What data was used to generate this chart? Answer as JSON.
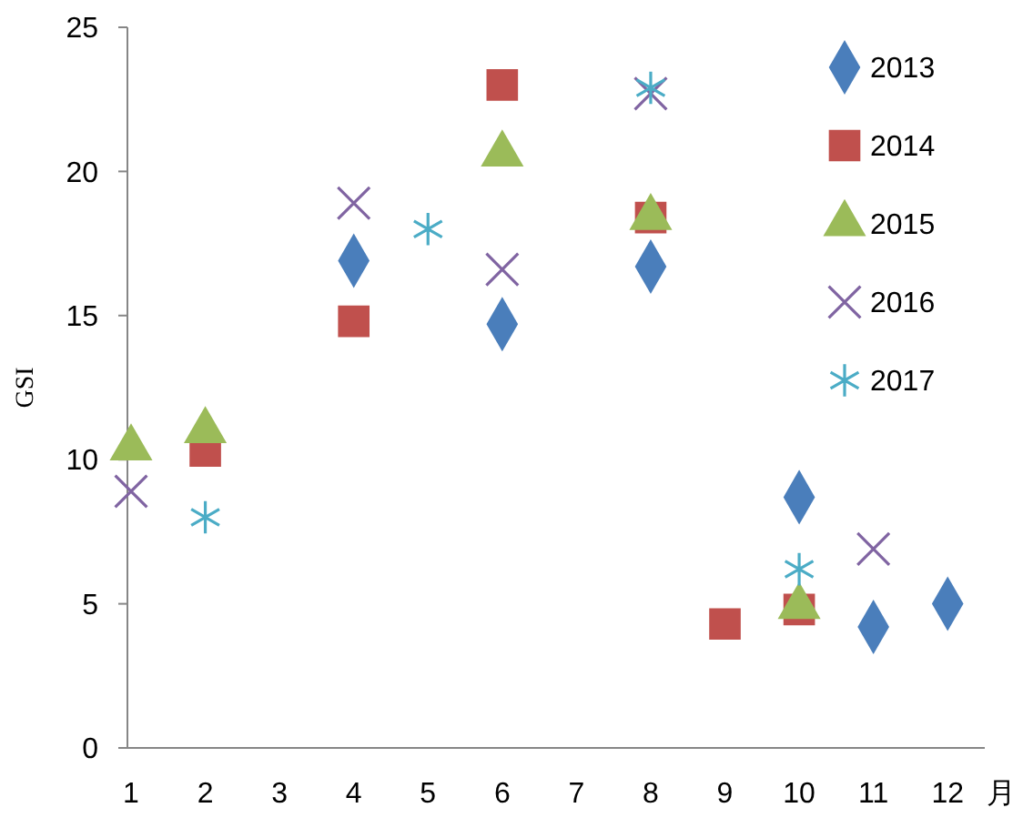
{
  "chart_data": {
    "type": "scatter",
    "xlabel": "月",
    "ylabel": "GSI",
    "xlim": [
      1,
      12.5
    ],
    "xticks": [
      1,
      2,
      3,
      4,
      5,
      6,
      7,
      8,
      9,
      10,
      11,
      12
    ],
    "ylim": [
      0,
      25
    ],
    "yticks": [
      0,
      5,
      10,
      15,
      20,
      25
    ],
    "grid": false,
    "legend": "top right",
    "series": [
      {
        "name": "2013",
        "color": "#4a7ebb",
        "marker": "diamond",
        "x": [
          4,
          6,
          8,
          10,
          11,
          12
        ],
        "values": [
          16.9,
          14.7,
          16.7,
          8.7,
          4.2,
          5.0
        ]
      },
      {
        "name": "2014",
        "color": "#c0504d",
        "marker": "square",
        "x": [
          2,
          4,
          6,
          8,
          9,
          10
        ],
        "values": [
          10.3,
          14.8,
          23.0,
          18.4,
          4.3,
          4.8
        ]
      },
      {
        "name": "2015",
        "color": "#9bbb59",
        "marker": "triangle",
        "x": [
          1,
          2,
          6,
          8,
          10
        ],
        "values": [
          10.4,
          11.0,
          20.6,
          18.4,
          4.9
        ]
      },
      {
        "name": "2016",
        "color": "#8064a2",
        "marker": "cross",
        "x": [
          1,
          4,
          6,
          8,
          11
        ],
        "values": [
          8.9,
          18.9,
          16.6,
          22.7,
          6.9
        ]
      },
      {
        "name": "2017",
        "color": "#4bacc6",
        "x": [
          2,
          5,
          8,
          10
        ],
        "values": [
          8.0,
          18.0,
          22.9,
          6.2
        ]
      }
    ]
  }
}
